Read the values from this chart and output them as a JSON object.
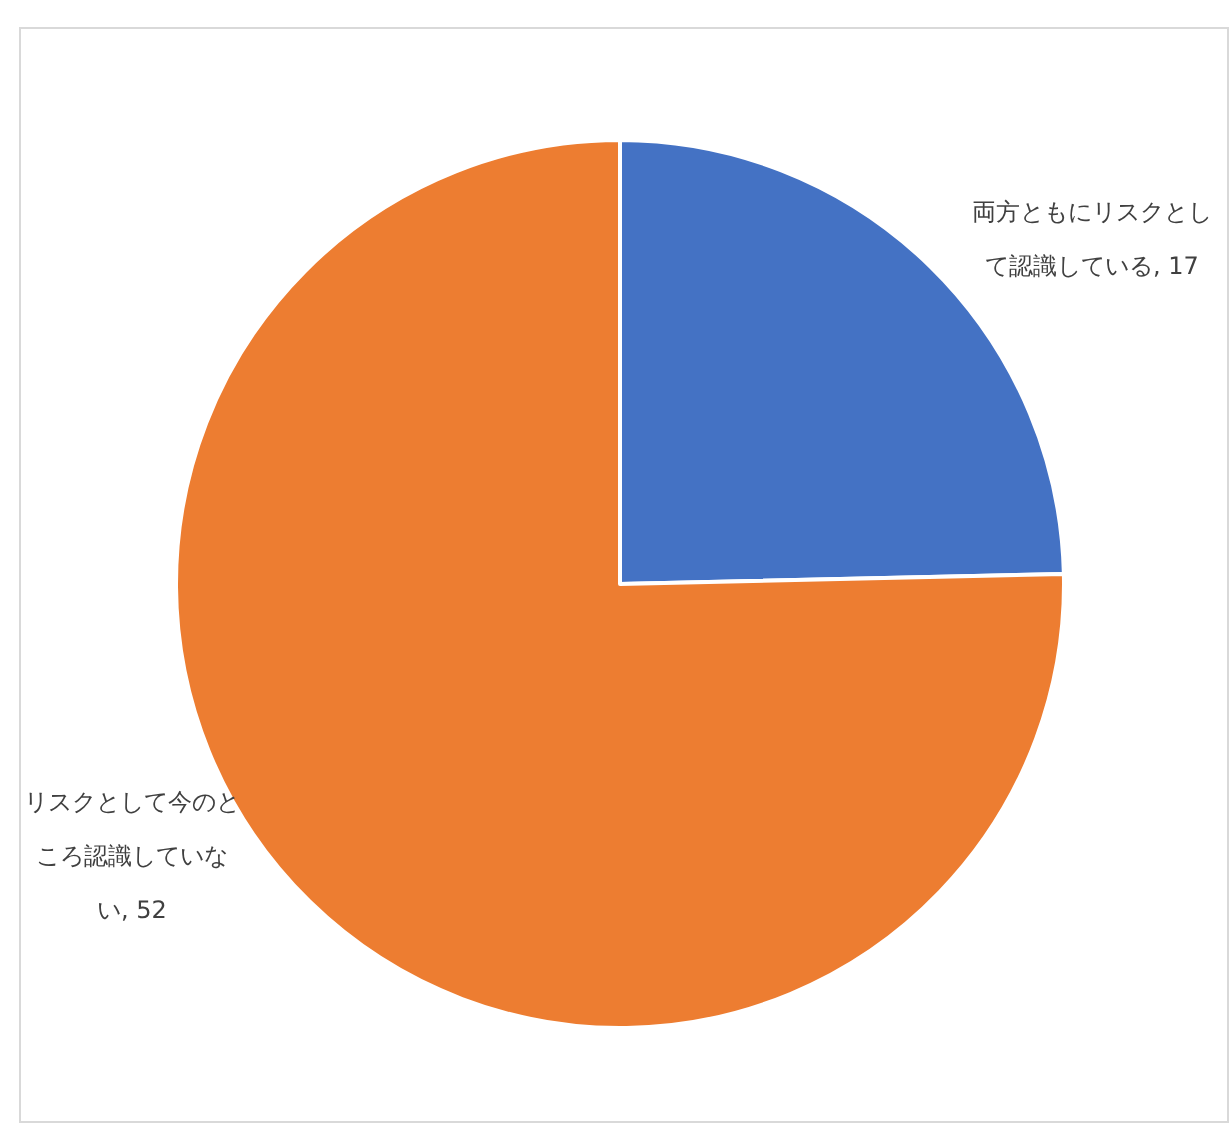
{
  "chart_data": {
    "type": "pie",
    "categories": [
      "両方ともにリスクとして認識している",
      "リスクとして今のところ認識していない"
    ],
    "values": [
      17,
      52
    ],
    "colors": [
      "#4472c4",
      "#ed7d31"
    ],
    "value_labels": [
      ", 17",
      ", 52"
    ]
  }
}
